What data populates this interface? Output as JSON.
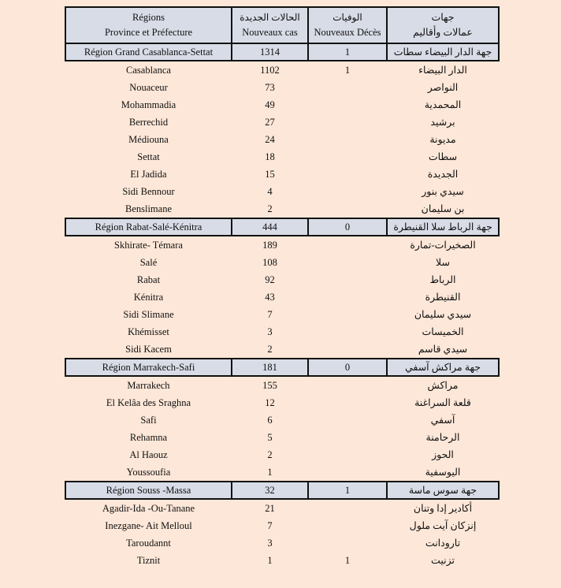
{
  "header": {
    "col1": [
      "Régions",
      "Province et Préfecture"
    ],
    "col2": [
      "الحالات الجديدة",
      "Nouveaux cas"
    ],
    "col3": [
      "الوفيات",
      "Nouveaux Décès"
    ],
    "col4": [
      "جهات",
      "عمالات وأقاليم"
    ]
  },
  "regions": [
    {
      "name": "Région Grand Casablanca-Settat",
      "cases": "1314",
      "deaths": "1",
      "name_ar": "جهة الدار البيضاء سطات",
      "rows": [
        {
          "name": "Casablanca",
          "cases": "1102",
          "deaths": "1",
          "name_ar": "الدار البيضاء"
        },
        {
          "name": "Nouaceur",
          "cases": "73",
          "deaths": "",
          "name_ar": "النواصر"
        },
        {
          "name": "Mohammadia",
          "cases": "49",
          "deaths": "",
          "name_ar": "المحمدية"
        },
        {
          "name": "Berrechid",
          "cases": "27",
          "deaths": "",
          "name_ar": "برشيد"
        },
        {
          "name": "Médiouna",
          "cases": "24",
          "deaths": "",
          "name_ar": "مديونة"
        },
        {
          "name": "Settat",
          "cases": "18",
          "deaths": "",
          "name_ar": "سطات"
        },
        {
          "name": "El Jadida",
          "cases": "15",
          "deaths": "",
          "name_ar": "الجديدة"
        },
        {
          "name": "Sidi Bennour",
          "cases": "4",
          "deaths": "",
          "name_ar": "سيدي بنور"
        },
        {
          "name": "Benslimane",
          "cases": "2",
          "deaths": "",
          "name_ar": "بن سليمان"
        }
      ]
    },
    {
      "name": "Région Rabat-Salé-Kénitra",
      "cases": "444",
      "deaths": "0",
      "name_ar": "جهة الرباط سلا القنيطرة",
      "rows": [
        {
          "name": "Skhirate- Témara",
          "cases": "189",
          "deaths": "",
          "name_ar": "الصخيرات-تمارة"
        },
        {
          "name": "Salé",
          "cases": "108",
          "deaths": "",
          "name_ar": "سلا"
        },
        {
          "name": "Rabat",
          "cases": "92",
          "deaths": "",
          "name_ar": "الرباط"
        },
        {
          "name": "Kénitra",
          "cases": "43",
          "deaths": "",
          "name_ar": "القنيطرة"
        },
        {
          "name": "Sidi Slimane",
          "cases": "7",
          "deaths": "",
          "name_ar": "سيدي سليمان"
        },
        {
          "name": "Khémisset",
          "cases": "3",
          "deaths": "",
          "name_ar": "الخميسات"
        },
        {
          "name": "Sidi Kacem",
          "cases": "2",
          "deaths": "",
          "name_ar": "سيدي قاسم"
        }
      ]
    },
    {
      "name": "Région Marrakech-Safi",
      "cases": "181",
      "deaths": "0",
      "name_ar": "جهة مراكش آسفي",
      "rows": [
        {
          "name": "Marrakech",
          "cases": "155",
          "deaths": "",
          "name_ar": "مراكش"
        },
        {
          "name": "El Kelâa des Sraghna",
          "cases": "12",
          "deaths": "",
          "name_ar": "قلعة السراغنة"
        },
        {
          "name": "Safi",
          "cases": "6",
          "deaths": "",
          "name_ar": "آسفي"
        },
        {
          "name": "Rehamna",
          "cases": "5",
          "deaths": "",
          "name_ar": "الرحامنة"
        },
        {
          "name": "Al  Haouz",
          "cases": "2",
          "deaths": "",
          "name_ar": "الحوز"
        },
        {
          "name": "Youssoufia",
          "cases": "1",
          "deaths": "",
          "name_ar": "اليوسفية"
        }
      ]
    },
    {
      "name": "Région Souss -Massa",
      "cases": "32",
      "deaths": "1",
      "name_ar": "جهة سوس ماسة",
      "rows": [
        {
          "name": "Agadir-Ida -Ou-Tanane",
          "cases": "21",
          "deaths": "",
          "name_ar": "أكادير إدا وتنان"
        },
        {
          "name": "Inezgane- Ait Melloul",
          "cases": "7",
          "deaths": "",
          "name_ar": "إنزكان آيت ملول"
        },
        {
          "name": "Taroudannt",
          "cases": "3",
          "deaths": "",
          "name_ar": "تارودانت"
        },
        {
          "name": "Tiznit",
          "cases": "1",
          "deaths": "1",
          "name_ar": "تزنيت"
        }
      ]
    }
  ]
}
